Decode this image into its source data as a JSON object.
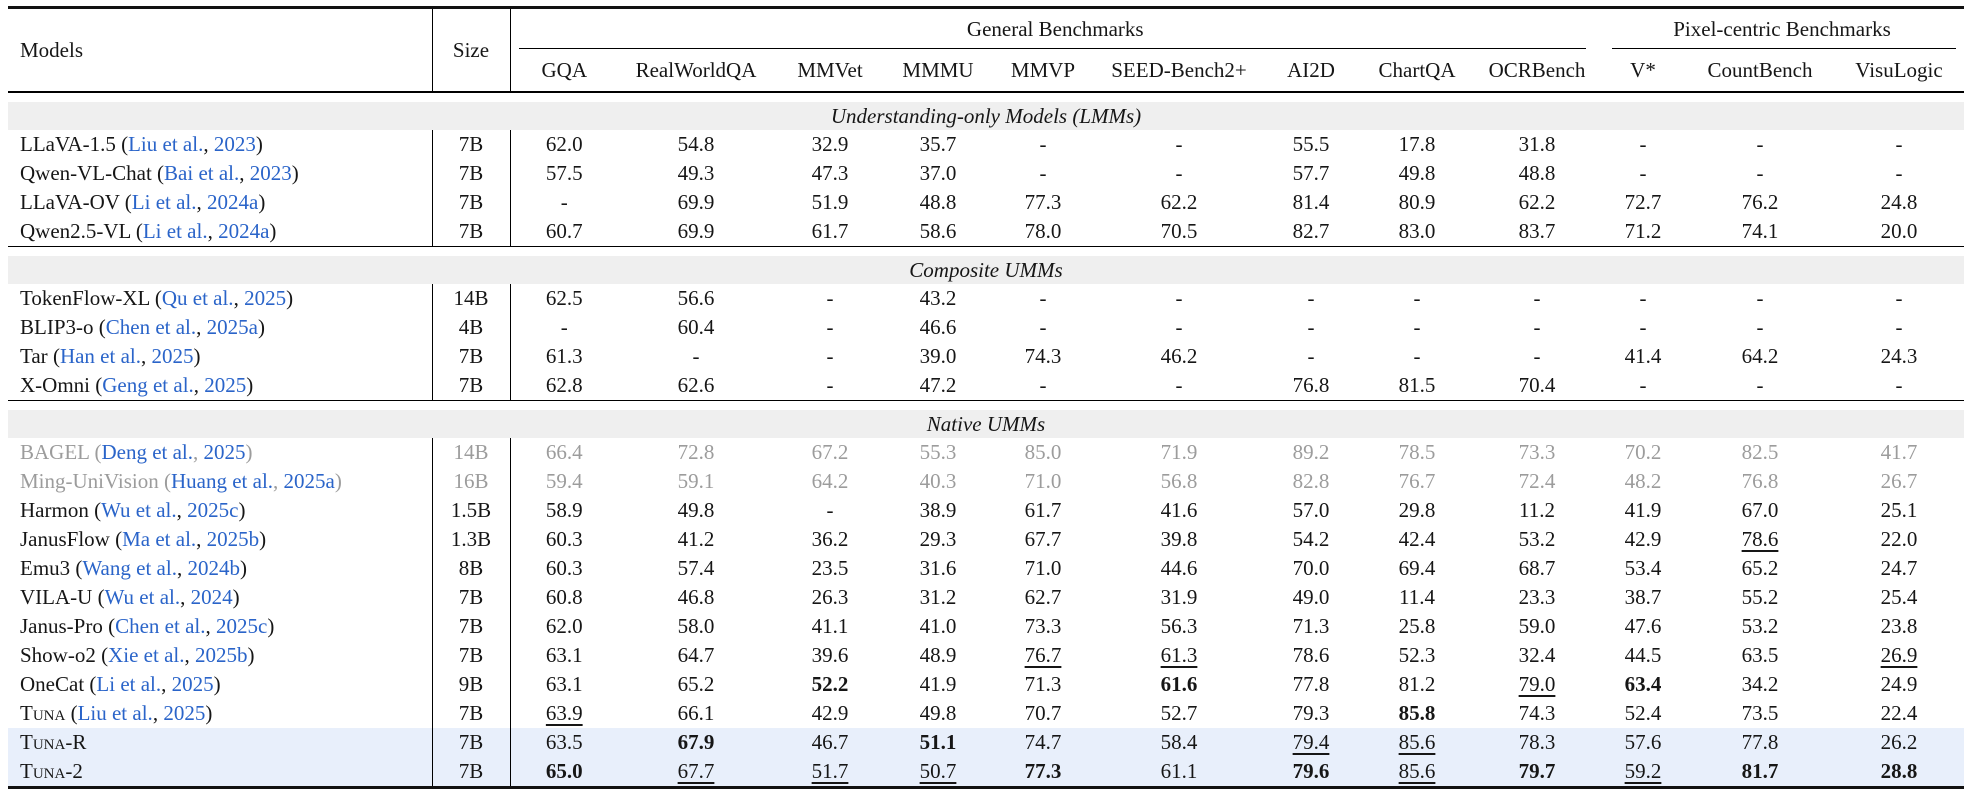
{
  "colors": {
    "citation_blue": "#2a64c9",
    "section_band_gray": "#efefef",
    "highlight_row_blue": "#e8effb",
    "muted_gray": "#9c9c9c"
  },
  "table": {
    "header": {
      "models": "Models",
      "size": "Size"
    },
    "groups": [
      {
        "label": "General Benchmarks",
        "span": 9
      },
      {
        "label": "Pixel-centric Benchmarks",
        "span": 3
      }
    ],
    "columns": [
      "GQA",
      "RealWorldQA",
      "MMVet",
      "MMMU",
      "MMVP",
      "SEED-Bench2+",
      "AI2D",
      "ChartQA",
      "OCRBench",
      "V*",
      "CountBench",
      "VisuLogic"
    ],
    "sections": [
      {
        "title": "Understanding-only Models (LMMs)",
        "rows": [
          {
            "name": "LLaVA-1.5",
            "cite": "Liu et al., 2023",
            "size": "7B",
            "cells": [
              "62.0",
              "54.8",
              "32.9",
              "35.7",
              "-",
              "-",
              "55.5",
              "17.8",
              "31.8",
              "-",
              "-",
              "-"
            ],
            "bold": [],
            "underline": [],
            "muted": false,
            "highlight": false,
            "smallcaps": false
          },
          {
            "name": "Qwen-VL-Chat",
            "cite": "Bai et al., 2023",
            "size": "7B",
            "cells": [
              "57.5",
              "49.3",
              "47.3",
              "37.0",
              "-",
              "-",
              "57.7",
              "49.8",
              "48.8",
              "-",
              "-",
              "-"
            ],
            "bold": [],
            "underline": [],
            "muted": false,
            "highlight": false,
            "smallcaps": false
          },
          {
            "name": "LLaVA-OV",
            "cite": "Li et al., 2024a",
            "size": "7B",
            "cells": [
              "-",
              "69.9",
              "51.9",
              "48.8",
              "77.3",
              "62.2",
              "81.4",
              "80.9",
              "62.2",
              "72.7",
              "76.2",
              "24.8"
            ],
            "bold": [],
            "underline": [],
            "muted": false,
            "highlight": false,
            "smallcaps": false
          },
          {
            "name": "Qwen2.5-VL",
            "cite": "Li et al., 2024a",
            "size": "7B",
            "cells": [
              "60.7",
              "69.9",
              "61.7",
              "58.6",
              "78.0",
              "70.5",
              "82.7",
              "83.0",
              "83.7",
              "71.2",
              "74.1",
              "20.0"
            ],
            "bold": [],
            "underline": [],
            "muted": false,
            "highlight": false,
            "smallcaps": false
          }
        ]
      },
      {
        "title": "Composite UMMs",
        "rows": [
          {
            "name": "TokenFlow-XL",
            "cite": "Qu et al., 2025",
            "size": "14B",
            "cells": [
              "62.5",
              "56.6",
              "-",
              "43.2",
              "-",
              "-",
              "-",
              "-",
              "-",
              "-",
              "-",
              "-"
            ],
            "bold": [],
            "underline": [],
            "muted": false,
            "highlight": false,
            "smallcaps": false
          },
          {
            "name": "BLIP3-o",
            "cite": "Chen et al., 2025a",
            "size": "4B",
            "cells": [
              "-",
              "60.4",
              "-",
              "46.6",
              "-",
              "-",
              "-",
              "-",
              "-",
              "-",
              "-",
              "-"
            ],
            "bold": [],
            "underline": [],
            "muted": false,
            "highlight": false,
            "smallcaps": false
          },
          {
            "name": "Tar",
            "cite": "Han et al., 2025",
            "size": "7B",
            "cells": [
              "61.3",
              "-",
              "-",
              "39.0",
              "74.3",
              "46.2",
              "-",
              "-",
              "-",
              "41.4",
              "64.2",
              "24.3"
            ],
            "bold": [],
            "underline": [],
            "muted": false,
            "highlight": false,
            "smallcaps": false
          },
          {
            "name": "X-Omni",
            "cite": "Geng et al., 2025",
            "size": "7B",
            "cells": [
              "62.8",
              "62.6",
              "-",
              "47.2",
              "-",
              "-",
              "76.8",
              "81.5",
              "70.4",
              "-",
              "-",
              "-"
            ],
            "bold": [],
            "underline": [],
            "muted": false,
            "highlight": false,
            "smallcaps": false
          }
        ]
      },
      {
        "title": "Native UMMs",
        "rows": [
          {
            "name": "BAGEL",
            "cite": "Deng et al., 2025",
            "size": "14B",
            "cells": [
              "66.4",
              "72.8",
              "67.2",
              "55.3",
              "85.0",
              "71.9",
              "89.2",
              "78.5",
              "73.3",
              "70.2",
              "82.5",
              "41.7"
            ],
            "bold": [],
            "underline": [],
            "muted": true,
            "highlight": false,
            "smallcaps": false
          },
          {
            "name": "Ming-UniVision",
            "cite": "Huang et al., 2025a",
            "size": "16B",
            "cells": [
              "59.4",
              "59.1",
              "64.2",
              "40.3",
              "71.0",
              "56.8",
              "82.8",
              "76.7",
              "72.4",
              "48.2",
              "76.8",
              "26.7"
            ],
            "bold": [],
            "underline": [],
            "muted": true,
            "highlight": false,
            "smallcaps": false
          },
          {
            "name": "Harmon",
            "cite": "Wu et al., 2025c",
            "size": "1.5B",
            "cells": [
              "58.9",
              "49.8",
              "-",
              "38.9",
              "61.7",
              "41.6",
              "57.0",
              "29.8",
              "11.2",
              "41.9",
              "67.0",
              "25.1"
            ],
            "bold": [],
            "underline": [],
            "muted": false,
            "highlight": false,
            "smallcaps": false
          },
          {
            "name": "JanusFlow",
            "cite": "Ma et al., 2025b",
            "size": "1.3B",
            "cells": [
              "60.3",
              "41.2",
              "36.2",
              "29.3",
              "67.7",
              "39.8",
              "54.2",
              "42.4",
              "53.2",
              "42.9",
              "78.6",
              "22.0"
            ],
            "bold": [],
            "underline": [
              10
            ],
            "muted": false,
            "highlight": false,
            "smallcaps": false
          },
          {
            "name": "Emu3",
            "cite": "Wang et al., 2024b",
            "size": "8B",
            "cells": [
              "60.3",
              "57.4",
              "23.5",
              "31.6",
              "71.0",
              "44.6",
              "70.0",
              "69.4",
              "68.7",
              "53.4",
              "65.2",
              "24.7"
            ],
            "bold": [],
            "underline": [],
            "muted": false,
            "highlight": false,
            "smallcaps": false
          },
          {
            "name": "VILA-U",
            "cite": "Wu et al., 2024",
            "size": "7B",
            "cells": [
              "60.8",
              "46.8",
              "26.3",
              "31.2",
              "62.7",
              "31.9",
              "49.0",
              "11.4",
              "23.3",
              "38.7",
              "55.2",
              "25.4"
            ],
            "bold": [],
            "underline": [],
            "muted": false,
            "highlight": false,
            "smallcaps": false
          },
          {
            "name": "Janus-Pro",
            "cite": "Chen et al., 2025c",
            "size": "7B",
            "cells": [
              "62.0",
              "58.0",
              "41.1",
              "41.0",
              "73.3",
              "56.3",
              "71.3",
              "25.8",
              "59.0",
              "47.6",
              "53.2",
              "23.8"
            ],
            "bold": [],
            "underline": [],
            "muted": false,
            "highlight": false,
            "smallcaps": false
          },
          {
            "name": "Show-o2",
            "cite": "Xie et al., 2025b",
            "size": "7B",
            "cells": [
              "63.1",
              "64.7",
              "39.6",
              "48.9",
              "76.7",
              "61.3",
              "78.6",
              "52.3",
              "32.4",
              "44.5",
              "63.5",
              "26.9"
            ],
            "bold": [],
            "underline": [
              4,
              5,
              11
            ],
            "muted": false,
            "highlight": false,
            "smallcaps": false
          },
          {
            "name": "OneCat",
            "cite": "Li et al., 2025",
            "size": "9B",
            "cells": [
              "63.1",
              "65.2",
              "52.2",
              "41.9",
              "71.3",
              "61.6",
              "77.8",
              "81.2",
              "79.0",
              "63.4",
              "34.2",
              "24.9"
            ],
            "bold": [
              2,
              5,
              9
            ],
            "underline": [
              8
            ],
            "muted": false,
            "highlight": false,
            "smallcaps": false
          },
          {
            "name": "Tuna",
            "cite": "Liu et al., 2025",
            "size": "7B",
            "cells": [
              "63.9",
              "66.1",
              "42.9",
              "49.8",
              "70.7",
              "52.7",
              "79.3",
              "85.8",
              "74.3",
              "52.4",
              "73.5",
              "22.4"
            ],
            "bold": [
              7
            ],
            "underline": [
              0
            ],
            "muted": false,
            "highlight": false,
            "smallcaps": true
          },
          {
            "name": "Tuna-R",
            "cite": "",
            "size": "7B",
            "cells": [
              "63.5",
              "67.9",
              "46.7",
              "51.1",
              "74.7",
              "58.4",
              "79.4",
              "85.6",
              "78.3",
              "57.6",
              "77.8",
              "26.2"
            ],
            "bold": [
              1,
              3
            ],
            "underline": [
              6,
              7
            ],
            "muted": false,
            "highlight": true,
            "smallcaps": true
          },
          {
            "name": "Tuna-2",
            "cite": "",
            "size": "7B",
            "cells": [
              "65.0",
              "67.7",
              "51.7",
              "50.7",
              "77.3",
              "61.1",
              "79.6",
              "85.6",
              "79.7",
              "59.2",
              "81.7",
              "28.8"
            ],
            "bold": [
              0,
              4,
              6,
              8,
              10,
              11
            ],
            "underline": [
              1,
              2,
              3,
              7,
              9
            ],
            "muted": false,
            "highlight": true,
            "smallcaps": true
          }
        ]
      }
    ]
  }
}
